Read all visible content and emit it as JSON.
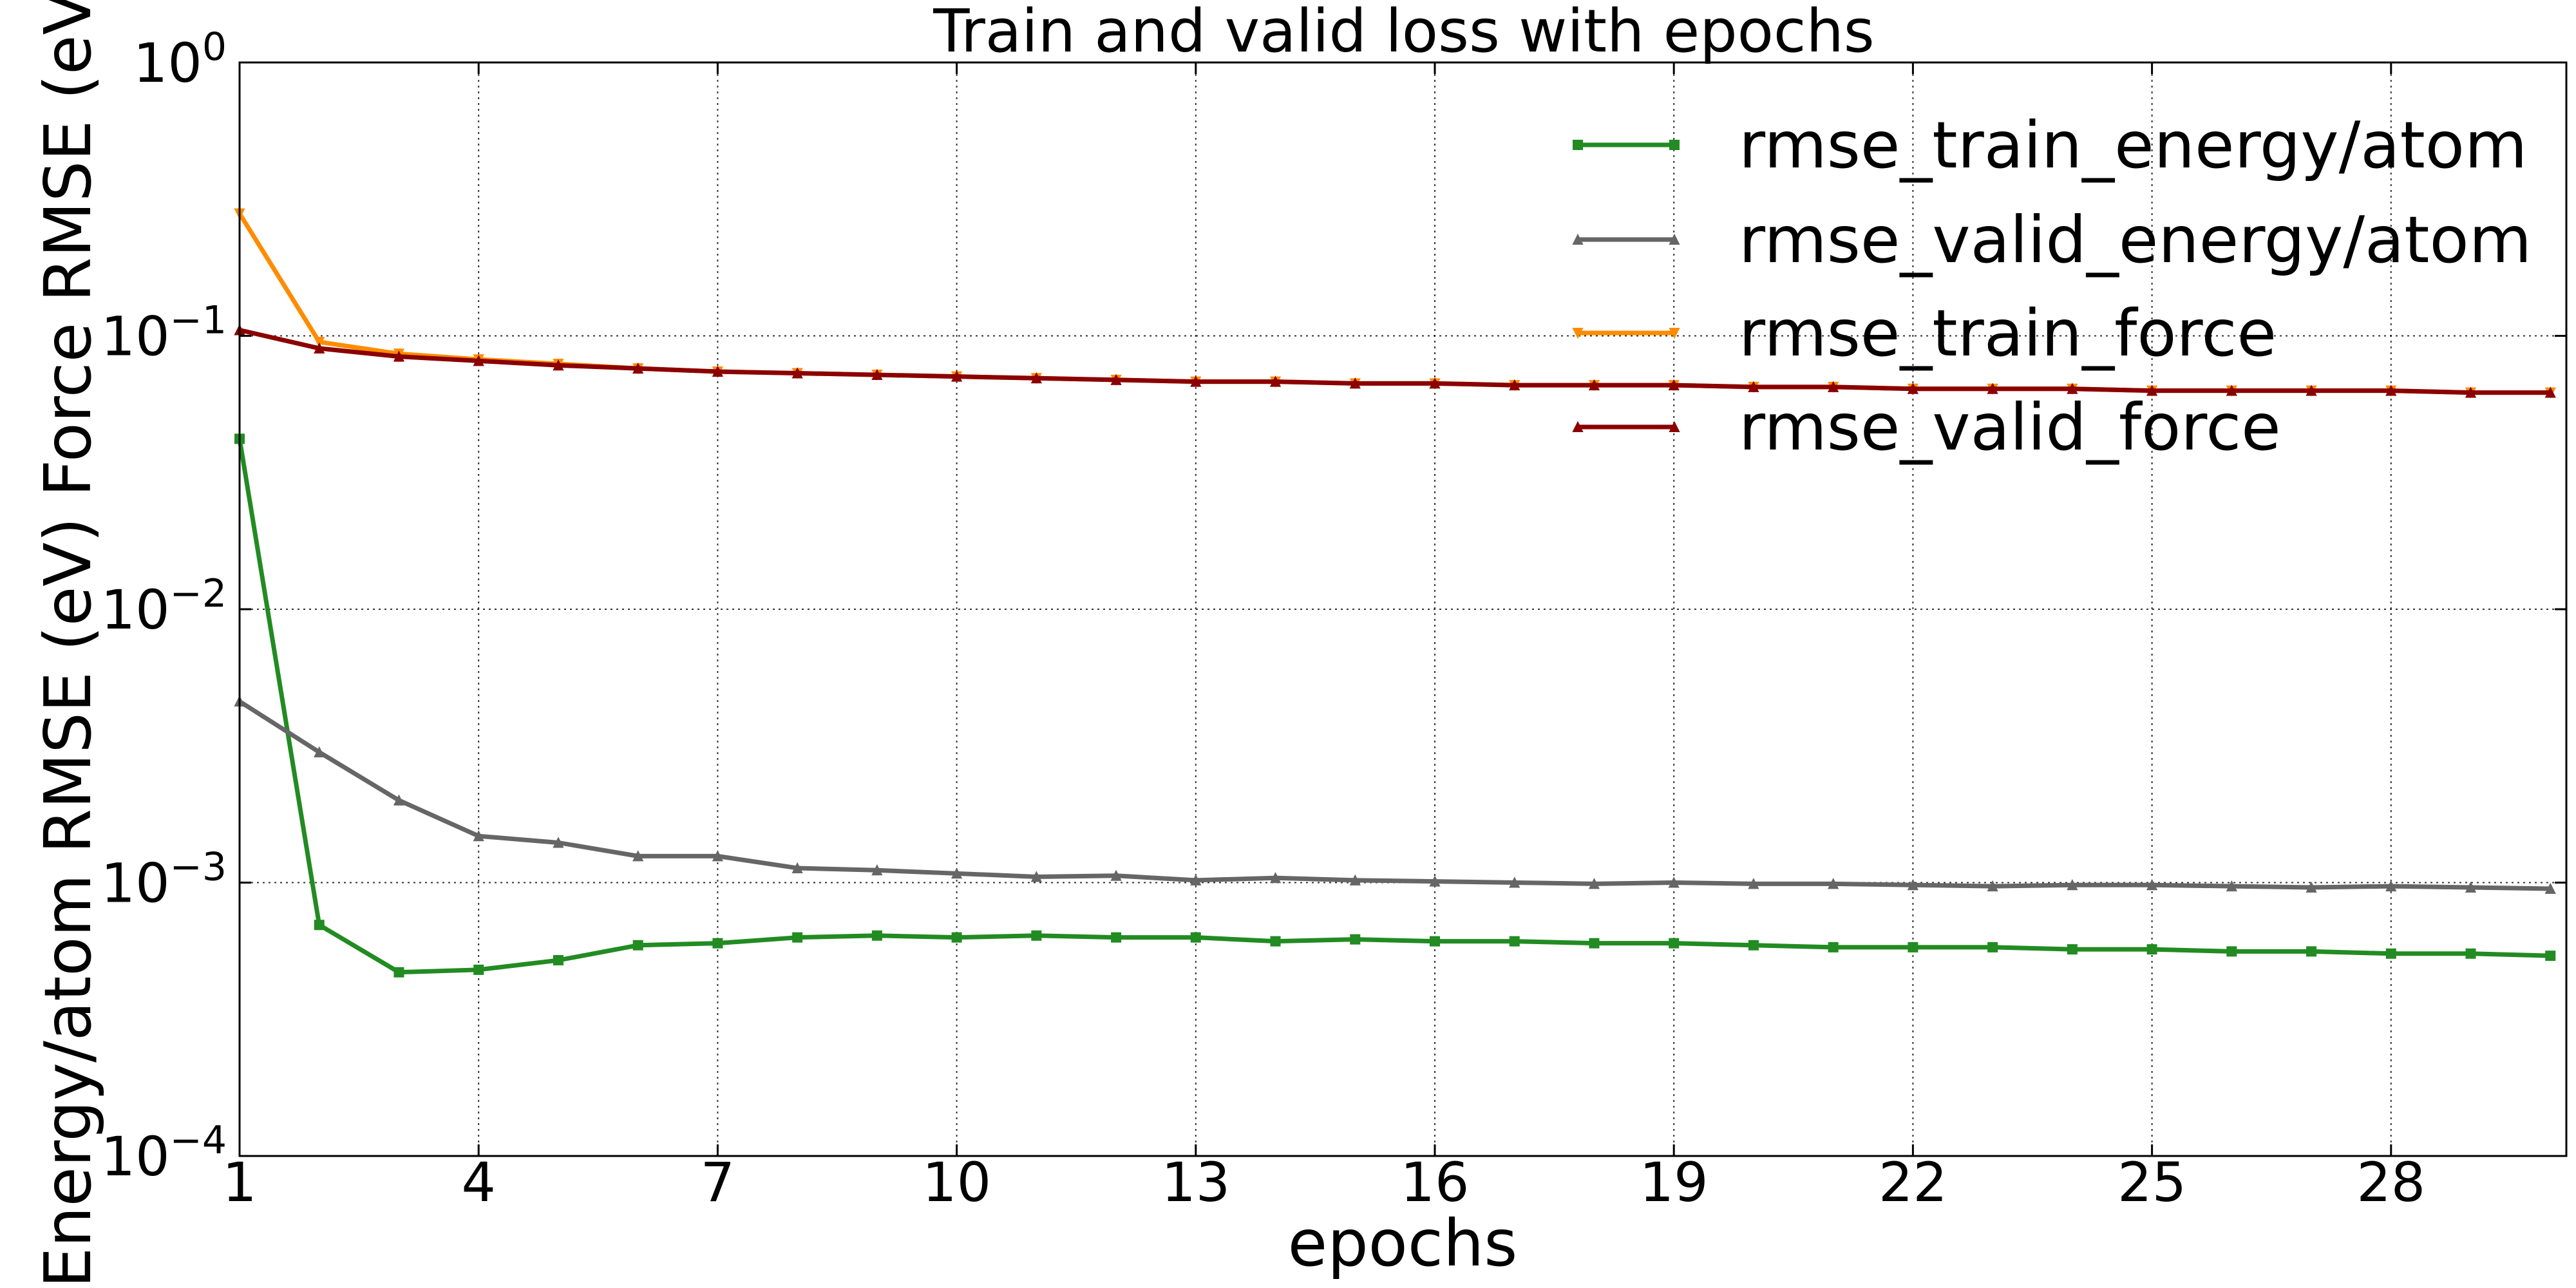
{
  "chart_data": {
    "type": "line",
    "title": "Train and valid loss with epochs",
    "xlabel": "epochs",
    "ylabel": "Energy/atom RMSE (eV)  Force RMSE (eV/",
    "xlim": [
      1,
      30.2
    ],
    "ylim": [
      0.0001,
      1
    ],
    "yscale": "log",
    "grid": true,
    "legend_position": "top-right",
    "x_ticks": [
      1,
      4,
      7,
      10,
      13,
      16,
      19,
      22,
      25,
      28
    ],
    "y_ticks": [
      {
        "value": 0.0001,
        "base": "10",
        "exp": "−4"
      },
      {
        "value": 0.001,
        "base": "10",
        "exp": "−3"
      },
      {
        "value": 0.01,
        "base": "10",
        "exp": "−2"
      },
      {
        "value": 0.1,
        "base": "10",
        "exp": "−1"
      },
      {
        "value": 1,
        "base": "10",
        "exp": "0"
      }
    ],
    "x": [
      1,
      2,
      3,
      4,
      5,
      6,
      7,
      8,
      9,
      10,
      11,
      12,
      13,
      14,
      15,
      16,
      17,
      18,
      19,
      20,
      21,
      22,
      23,
      24,
      25,
      26,
      27,
      28,
      29,
      30
    ],
    "series": [
      {
        "name": "rmse_train_energy/atom",
        "color": "#228b22",
        "marker": "square",
        "values": [
          0.042,
          0.0007,
          0.00047,
          0.00048,
          0.00052,
          0.00059,
          0.0006,
          0.00063,
          0.00064,
          0.00063,
          0.00064,
          0.00063,
          0.00063,
          0.00061,
          0.00062,
          0.00061,
          0.00061,
          0.0006,
          0.0006,
          0.00059,
          0.00058,
          0.00058,
          0.00058,
          0.00057,
          0.00057,
          0.00056,
          0.00056,
          0.00055,
          0.00055,
          0.00054
        ]
      },
      {
        "name": "rmse_valid_energy/atom",
        "color": "#666666",
        "marker": "triangle-up",
        "values": [
          0.0046,
          0.003,
          0.002,
          0.00148,
          0.0014,
          0.00125,
          0.00125,
          0.00113,
          0.00111,
          0.00108,
          0.00105,
          0.00106,
          0.00102,
          0.00104,
          0.00102,
          0.00101,
          0.001,
          0.00099,
          0.001,
          0.00099,
          0.00099,
          0.00098,
          0.00097,
          0.00098,
          0.00098,
          0.00097,
          0.00096,
          0.00097,
          0.00096,
          0.00095
        ]
      },
      {
        "name": "rmse_train_force",
        "color": "#ff8c00",
        "marker": "triangle-down",
        "values": [
          0.28,
          0.095,
          0.086,
          0.082,
          0.079,
          0.076,
          0.074,
          0.073,
          0.072,
          0.071,
          0.07,
          0.069,
          0.068,
          0.068,
          0.067,
          0.067,
          0.066,
          0.066,
          0.066,
          0.065,
          0.065,
          0.064,
          0.064,
          0.064,
          0.063,
          0.063,
          0.063,
          0.063,
          0.062,
          0.062
        ]
      },
      {
        "name": "rmse_valid_force",
        "color": "#8b0000",
        "marker": "triangle-up",
        "values": [
          0.105,
          0.09,
          0.084,
          0.081,
          0.078,
          0.076,
          0.074,
          0.073,
          0.072,
          0.071,
          0.07,
          0.069,
          0.068,
          0.068,
          0.067,
          0.067,
          0.066,
          0.066,
          0.066,
          0.065,
          0.065,
          0.064,
          0.064,
          0.064,
          0.063,
          0.063,
          0.063,
          0.063,
          0.062,
          0.062
        ]
      }
    ]
  }
}
